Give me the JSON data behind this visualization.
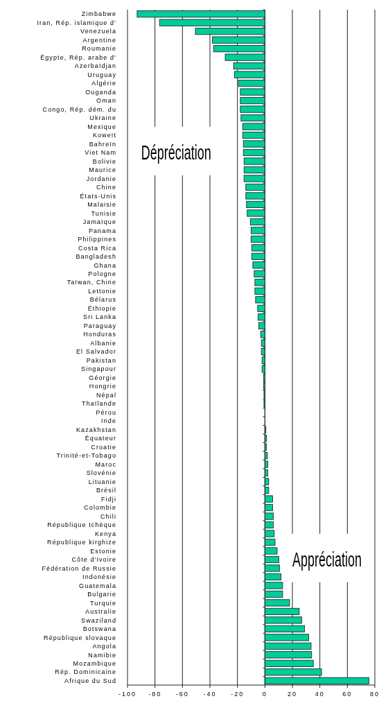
{
  "chart_data": {
    "type": "bar",
    "orientation": "horizontal",
    "color": "#00cc99",
    "grid": "x",
    "categories": [
      "Zimbabwe",
      "Iran, Rép. islamique d'",
      "Venezuela",
      "Argentine",
      "Roumanie",
      "Égypte, Rép. arabe d'",
      "Azerbaïdjan",
      "Uruguay",
      "Algérie",
      "Ouganda",
      "Oman",
      "Congo, Rép. dém. du",
      "Ukraine",
      "Mexique",
      "Koweït",
      "Bahreïn",
      "Viet Nam",
      "Bolivie",
      "Maurice",
      "Jordanie",
      "Chine",
      "États-Unis",
      "Malaisie",
      "Tunisie",
      "Jamaïque",
      "Panama",
      "Philippines",
      "Costa Rica",
      "Bangladesh",
      "Ghana",
      "Pologne",
      "Taïwan, Chine",
      "Lettonie",
      "Bélarus",
      "Éthiopie",
      "Sri Lanka",
      "Paraguay",
      "Honduras",
      "Albanie",
      "El Salvador",
      "Pakistan",
      "Singapour",
      "Géorgie",
      "Hongrie",
      "Népal",
      "Thaïlande",
      "Pérou",
      "Inde",
      "Kazakhstan",
      "Équateur",
      "Croatie",
      "Trinité-et-Tobago",
      "Maroc",
      "Slovénie",
      "Lituanie",
      "Brésil",
      "Fidji",
      "Colombie",
      "Chili",
      "République tchèque",
      "Kenya",
      "République kirghize",
      "Estonie",
      "Côte d'Ivoire",
      "Fédération de Russie",
      "Indonésie",
      "Guatemala",
      "Bulgarie",
      "Turquie",
      "Australie",
      "Swaziland",
      "Botswana",
      "République slovaque",
      "Angola",
      "Namibie",
      "Mozambique",
      "Rép. Dominicaine",
      "Afrique du Sud"
    ],
    "values": [
      -93,
      -76.7,
      -50.6,
      -38.3,
      -37.4,
      -28.9,
      -22.8,
      -22.1,
      -19.3,
      -17.9,
      -17.9,
      -17.9,
      -17.4,
      -16.2,
      -16.2,
      -15.7,
      -15.7,
      -15.2,
      -15.2,
      -15.2,
      -13.9,
      -13.9,
      -13.4,
      -12.9,
      -10.6,
      -10.1,
      -10.1,
      -9.6,
      -9.6,
      -8.8,
      -7.8,
      -7.3,
      -7.3,
      -6.8,
      -5.3,
      -5,
      -4.5,
      -3.1,
      -2.6,
      -2.6,
      -2.1,
      -2.1,
      -1,
      -1,
      -0.7,
      -0.7,
      0,
      0,
      0.7,
      1.2,
      1.2,
      1.8,
      2.1,
      2.1,
      2.8,
      2.8,
      5.6,
      5.6,
      6.1,
      6.1,
      6.8,
      7.4,
      8.9,
      10.1,
      10.6,
      11.7,
      12.9,
      12.9,
      18,
      25,
      26.8,
      28.9,
      31.9,
      33.6,
      34,
      35.2,
      41.2,
      75.7
    ],
    "xlim": [
      -100,
      80
    ],
    "xticks": [
      -100,
      -80,
      -60,
      -40,
      -20,
      0,
      20,
      40,
      60,
      80
    ],
    "annotations": [
      "Dépréciation",
      "Appréciation"
    ]
  }
}
